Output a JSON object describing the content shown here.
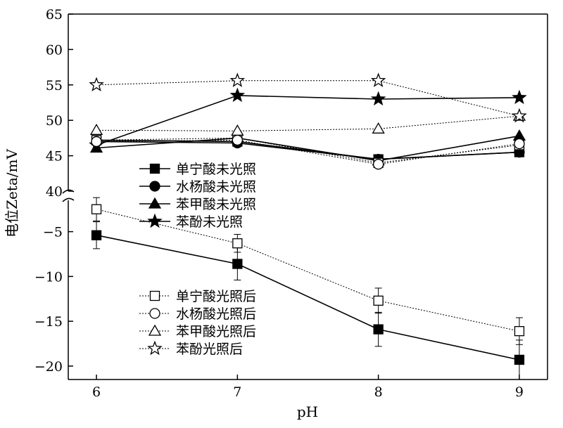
{
  "chart_data": {
    "type": "line",
    "xlabel": "pH",
    "ylabel": "电位Zeta/mV",
    "x": [
      6,
      7,
      8,
      9
    ],
    "xlim": [
      5.8,
      9.2
    ],
    "x_ticks": [
      "6",
      "7",
      "8",
      "9"
    ],
    "broken_y_axis": true,
    "upper_panel": {
      "ylim": [
        40,
        65
      ],
      "y_ticks": [
        "40",
        "45",
        "50",
        "55",
        "60",
        "65"
      ],
      "legend": {
        "placement": "lower-left"
      },
      "series": [
        {
          "name": "单宁酸未光照",
          "marker": "filled-square",
          "line": "solid",
          "values": [
            47.2,
            47.0,
            44.5,
            45.5
          ]
        },
        {
          "name": "水杨酸未光照",
          "marker": "filled-circle",
          "line": "solid",
          "values": [
            47.0,
            46.8,
            44.5,
            45.5
          ]
        },
        {
          "name": "苯甲酸未光照",
          "marker": "filled-triangle",
          "line": "solid",
          "values": [
            46.1,
            47.5,
            44.3,
            47.8
          ]
        },
        {
          "name": "苯酚未光照",
          "marker": "filled-star",
          "line": "solid",
          "values": [
            46.5,
            53.5,
            53.0,
            53.2
          ]
        },
        {
          "name": "单宁酸光照后",
          "marker": "open-square",
          "line": "dotted",
          "values": [
            47.2,
            47.5,
            44.0,
            46.5
          ]
        },
        {
          "name": "水杨酸光照后",
          "marker": "open-circle",
          "line": "dotted",
          "values": [
            47.0,
            47.2,
            43.8,
            46.7
          ]
        },
        {
          "name": "苯甲酸光照后",
          "marker": "open-triangle",
          "line": "dotted",
          "values": [
            48.6,
            48.5,
            48.8,
            50.6
          ]
        },
        {
          "name": "苯酚光照后",
          "marker": "open-star",
          "line": "dotted",
          "values": [
            55.0,
            55.6,
            55.6,
            50.6
          ]
        }
      ]
    },
    "lower_panel": {
      "ylim": [
        -21.5,
        -1.5
      ],
      "y_ticks": [
        "-5",
        "-10",
        "-15",
        "-20"
      ],
      "legend": {
        "placement": "center-right"
      },
      "series": [
        {
          "name": "单宁酸未光照",
          "marker": "filled-square",
          "line": "solid",
          "values": [
            -5.4,
            -8.6,
            -15.9,
            -19.3
          ],
          "errors": [
            1.5,
            1.8,
            1.9,
            2.2
          ]
        },
        {
          "name": "单宁酸光照后",
          "marker": "open-square",
          "line": "dotted",
          "values": [
            -2.5,
            -6.3,
            -12.7,
            -16.1
          ],
          "errors": [
            1.3,
            1.0,
            1.4,
            1.5
          ]
        }
      ]
    },
    "lower_legend_entries": [
      "单宁酸光照后",
      "水杨酸光照后",
      "苯甲酸光照后",
      "苯酚光照后"
    ],
    "upper_legend_entries": [
      "单宁酸未光照",
      "水杨酸未光照",
      "苯甲酸未光照",
      "苯酚未光照"
    ]
  }
}
